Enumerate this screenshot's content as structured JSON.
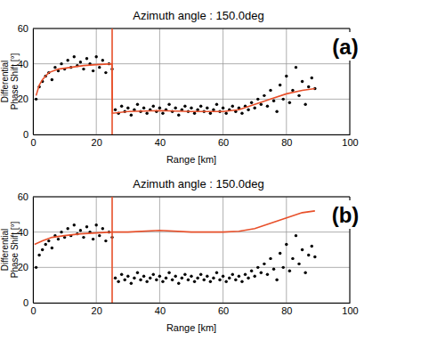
{
  "chart_data": [
    {
      "type": "scatter",
      "title": "Azimuth angle : 150.0deg",
      "x_label": "Range [km]",
      "y_label": [
        "Differential",
        "Phase Shift [°]"
      ],
      "annotation": "(a)",
      "xlim": [
        0,
        100
      ],
      "xticks": [
        0,
        20,
        40,
        60,
        80,
        100
      ],
      "ylim": [
        0,
        60
      ],
      "yticks": [
        0,
        20,
        40,
        60
      ],
      "grid": true,
      "series": [
        {
          "type": "scatter",
          "color": "#000000",
          "marker": "circle",
          "x": [
            1,
            2,
            3,
            4,
            5,
            6,
            7,
            8,
            9,
            10,
            11,
            12,
            13,
            14,
            15,
            16,
            17,
            18,
            19,
            20,
            21,
            22,
            23,
            24,
            25,
            26,
            27,
            28,
            29,
            30,
            31,
            32,
            33,
            34,
            35,
            36,
            37,
            38,
            39,
            40,
            41,
            42,
            43,
            44,
            45,
            46,
            47,
            48,
            49,
            50,
            51,
            52,
            53,
            54,
            55,
            56,
            57,
            58,
            59,
            60,
            61,
            62,
            63,
            64,
            65,
            66,
            67,
            68,
            69,
            70,
            71,
            72,
            73,
            74,
            75,
            76,
            77,
            78,
            79,
            80,
            81,
            82,
            83,
            84,
            85,
            86,
            87,
            88,
            89
          ],
          "values": [
            20,
            27,
            30,
            33,
            35,
            31,
            38,
            36,
            40,
            37,
            42,
            38,
            44,
            39,
            41,
            37,
            43,
            40,
            36,
            44,
            38,
            42,
            35,
            40,
            37,
            14,
            12,
            16,
            13,
            15,
            11,
            14,
            17,
            13,
            15,
            12,
            14,
            16,
            13,
            15,
            12,
            14,
            17,
            13,
            15,
            11,
            14,
            16,
            13,
            15,
            12,
            14,
            16,
            13,
            15,
            12,
            14,
            17,
            13,
            15,
            12,
            14,
            16,
            13,
            15,
            12,
            16,
            14,
            18,
            15,
            20,
            17,
            22,
            16,
            25,
            19,
            13,
            28,
            20,
            33,
            18,
            25,
            38,
            22,
            30,
            17,
            27,
            32,
            26
          ]
        },
        {
          "type": "line",
          "color": "#e8502a",
          "line_style": "solid",
          "x": [
            1,
            2,
            3,
            5,
            8,
            12,
            16,
            20,
            24.9,
            25.1,
            30,
            40,
            50,
            60,
            65,
            70,
            75,
            80,
            85,
            89
          ],
          "values": [
            22,
            28,
            31,
            35,
            37,
            38,
            39,
            39.5,
            40,
            12,
            13,
            13.5,
            13,
            13,
            14,
            17,
            20,
            23,
            25,
            26
          ]
        },
        {
          "type": "line",
          "color": "#e8502a",
          "line_style": "solid",
          "x": [
            25,
            25
          ],
          "values": [
            0,
            60
          ]
        }
      ]
    },
    {
      "type": "scatter",
      "title": "Azimuth angle : 150.0deg",
      "x_label": "Range [km]",
      "y_label": [
        "Differential",
        "Phase Shift [°]"
      ],
      "annotation": "(b)",
      "xlim": [
        0,
        100
      ],
      "xticks": [
        0,
        20,
        40,
        60,
        80,
        100
      ],
      "ylim": [
        0,
        60
      ],
      "yticks": [
        0,
        20,
        40,
        60
      ],
      "grid": true,
      "series": [
        {
          "type": "scatter",
          "color": "#000000",
          "marker": "circle",
          "x": [
            1,
            2,
            3,
            4,
            5,
            6,
            7,
            8,
            9,
            10,
            11,
            12,
            13,
            14,
            15,
            16,
            17,
            18,
            19,
            20,
            21,
            22,
            23,
            24,
            25,
            26,
            27,
            28,
            29,
            30,
            31,
            32,
            33,
            34,
            35,
            36,
            37,
            38,
            39,
            40,
            41,
            42,
            43,
            44,
            45,
            46,
            47,
            48,
            49,
            50,
            51,
            52,
            53,
            54,
            55,
            56,
            57,
            58,
            59,
            60,
            61,
            62,
            63,
            64,
            65,
            66,
            67,
            68,
            69,
            70,
            71,
            72,
            73,
            74,
            75,
            76,
            77,
            78,
            79,
            80,
            81,
            82,
            83,
            84,
            85,
            86,
            87,
            88,
            89
          ],
          "values": [
            20,
            27,
            30,
            33,
            35,
            31,
            38,
            36,
            40,
            37,
            42,
            38,
            44,
            39,
            41,
            37,
            43,
            40,
            36,
            44,
            38,
            42,
            35,
            40,
            37,
            14,
            12,
            16,
            13,
            15,
            11,
            14,
            17,
            13,
            15,
            12,
            14,
            16,
            13,
            15,
            12,
            14,
            17,
            13,
            15,
            11,
            14,
            16,
            13,
            15,
            12,
            14,
            16,
            13,
            15,
            12,
            14,
            17,
            13,
            15,
            12,
            14,
            16,
            13,
            15,
            12,
            16,
            14,
            18,
            15,
            20,
            17,
            22,
            16,
            25,
            19,
            13,
            28,
            20,
            33,
            18,
            25,
            38,
            22,
            30,
            17,
            27,
            32,
            26
          ]
        },
        {
          "type": "line",
          "color": "#e8502a",
          "line_style": "solid",
          "x": [
            0.5,
            3,
            6,
            10,
            15,
            20,
            25,
            30,
            40,
            50,
            60,
            65,
            70,
            75,
            80,
            85,
            89
          ],
          "values": [
            33,
            35,
            37,
            38,
            39,
            39.5,
            40,
            40,
            41,
            40,
            40,
            40.5,
            42,
            45,
            48,
            51,
            52
          ]
        },
        {
          "type": "line",
          "color": "#e8502a",
          "line_style": "solid",
          "x": [
            25,
            25
          ],
          "values": [
            0,
            60
          ]
        }
      ]
    }
  ]
}
